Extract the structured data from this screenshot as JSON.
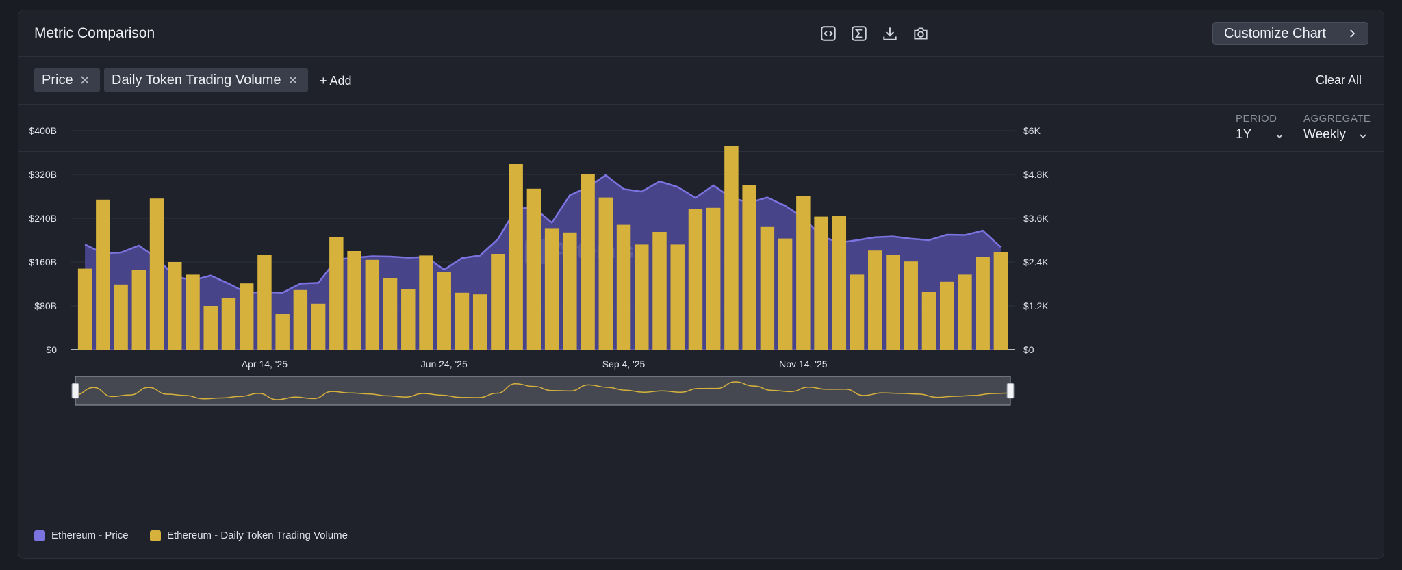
{
  "header": {
    "title": "Metric Comparison",
    "customize_label": "Customize Chart",
    "tools": [
      "embed-icon",
      "sigma-icon",
      "download-icon",
      "camera-icon"
    ]
  },
  "tags": {
    "items": [
      {
        "label": "Price"
      },
      {
        "label": "Daily Token Trading Volume"
      }
    ],
    "add_label": "+ Add",
    "clear_label": "Clear All"
  },
  "controls": {
    "period_label": "PERIOD",
    "period_value": "1Y",
    "aggregate_label": "AGGREGATE",
    "aggregate_value": "Weekly"
  },
  "watermark": "Artemis",
  "colors": {
    "price_line": "#7b74e0",
    "price_fill": "#4f4a9a",
    "volume_bar": "#d6b23c",
    "background": "#1f222b"
  },
  "chart_data": {
    "type": "bar",
    "title": "",
    "xlabel": "",
    "ylabel": "",
    "x_ticks": [
      {
        "index": 10,
        "label": "Apr 14, '25"
      },
      {
        "index": 20,
        "label": "Jun 24, '25"
      },
      {
        "index": 30,
        "label": "Sep 4, '25"
      },
      {
        "index": 40,
        "label": "Nov 14, '25"
      }
    ],
    "y_left": {
      "min": 0,
      "max": 400,
      "ticks": [
        "$0",
        "$80B",
        "$160B",
        "$240B",
        "$320B",
        "$400B"
      ]
    },
    "y_right": {
      "min": 0,
      "max": 6000,
      "ticks": [
        "$0",
        "$1.2K",
        "$2.4K",
        "$3.6K",
        "$4.8K",
        "$6K"
      ]
    },
    "grid": true,
    "legend_position": "bottom-left",
    "series": [
      {
        "name": "Ethereum - Price",
        "type": "area",
        "axis": "right",
        "values": [
          2880,
          2640,
          2660,
          2850,
          2510,
          2010,
          1900,
          2030,
          1810,
          1560,
          1580,
          1560,
          1810,
          1830,
          2470,
          2520,
          2560,
          2550,
          2520,
          2540,
          2190,
          2510,
          2580,
          3030,
          3860,
          3890,
          3480,
          4230,
          4450,
          4780,
          4400,
          4330,
          4610,
          4460,
          4160,
          4500,
          4160,
          4030,
          4170,
          3940,
          3620,
          3110,
          2930,
          3000,
          3080,
          3100,
          3040,
          3000,
          3150,
          3140,
          3260,
          2810
        ]
      },
      {
        "name": "Ethereum - Daily Token Trading Volume",
        "type": "bar",
        "axis": "left",
        "values": [
          148,
          274,
          119,
          146,
          276,
          160,
          137,
          80,
          94,
          121,
          173,
          65,
          109,
          84,
          205,
          180,
          164,
          131,
          110,
          172,
          142,
          104,
          101,
          175,
          340,
          294,
          222,
          214,
          320,
          278,
          228,
          192,
          215,
          192,
          257,
          259,
          372,
          300,
          224,
          203,
          280,
          243,
          245,
          137,
          181,
          173,
          161,
          105,
          124,
          137,
          170,
          178
        ]
      }
    ]
  }
}
